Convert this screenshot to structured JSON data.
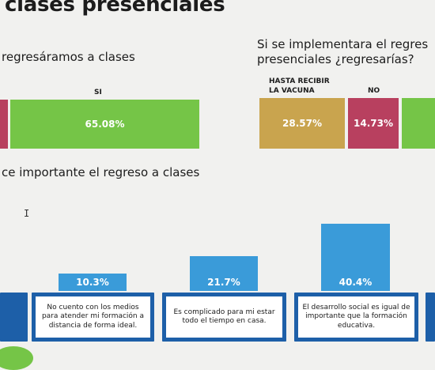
{
  "title": "clases presenciales",
  "chart_left": {
    "question": "regresáramos a clases",
    "si_label": "SI",
    "si_value": "65.08%"
  },
  "chart_right": {
    "question_line1": "Si se implementara el regres",
    "question_line2": "presenciales ¿regresarías?",
    "hasta_label_line1": "HASTA RECIBIR",
    "hasta_label_line2": "LA VACUNA",
    "hasta_value": "28.57%",
    "no_label": "NO",
    "no_value": "14.73%"
  },
  "chart_bottom": {
    "question": "ce importante el regreso a clases",
    "items": [
      {
        "value": "10.3%",
        "text": "No cuento con los medios para atender mi formación a distancia de forma ideal."
      },
      {
        "value": "21.7%",
        "text": "Es complicado para mi estar todo el tiempo en casa."
      },
      {
        "value": "40.4%",
        "text": "El desarrollo social es igual de importante que la formación educativa."
      }
    ]
  },
  "colors": {
    "green": "#75c547",
    "red": "#b8405f",
    "gold": "#c9a44e",
    "blue_light": "#3a9bd9",
    "blue_dark": "#1d5fa8"
  }
}
